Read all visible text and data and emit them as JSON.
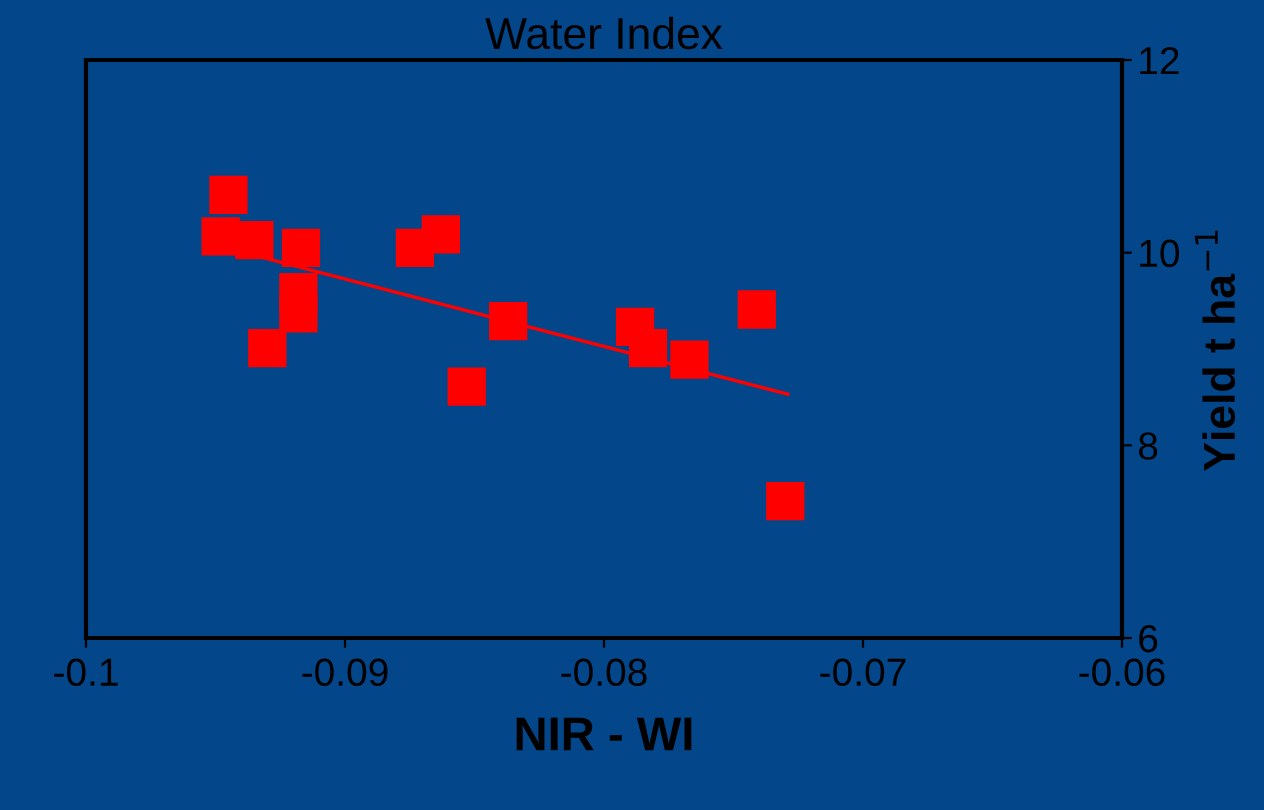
{
  "chart_data": {
    "type": "scatter",
    "title": "Water Index",
    "xlabel": "NIR - WI",
    "ylabel": "Yield t ha$^{−1}$",
    "xlim": [
      -0.1,
      -0.06
    ],
    "xticks": [
      -0.1,
      -0.09,
      -0.08,
      -0.07,
      -0.06
    ],
    "ylim": [
      6,
      12
    ],
    "yticks": [
      6,
      8,
      10,
      12
    ],
    "grid": false,
    "legend": false,
    "series": [
      {
        "color": "#ff0000",
        "marker": "square",
        "x": [
          -0.0945,
          -0.0948,
          -0.0935,
          -0.0917,
          -0.0918,
          -0.0918,
          -0.093,
          -0.0873,
          -0.0863,
          -0.0853,
          -0.0837,
          -0.0788,
          -0.0783,
          -0.0767,
          -0.0741,
          -0.073
        ],
        "values": [
          10.6,
          10.17,
          10.13,
          10.05,
          9.59,
          9.37,
          9.01,
          10.05,
          10.19,
          8.61,
          9.29,
          9.23,
          9.01,
          8.89,
          9.41,
          7.42
        ]
      },
      {
        "type": "line",
        "color": "#ff0000",
        "marker": "none",
        "x": [
          -0.0939,
          -0.0729
        ],
        "values": [
          10.0,
          8.53
        ]
      }
    ]
  }
}
